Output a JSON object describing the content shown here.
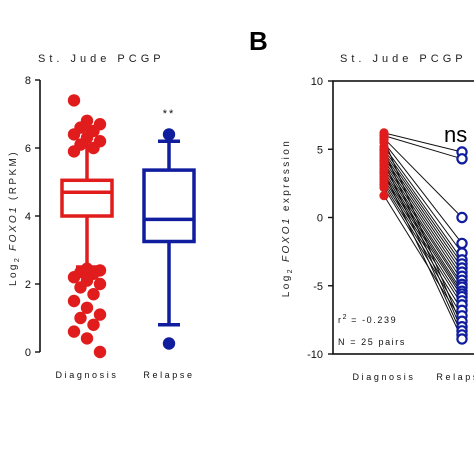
{
  "chart_data": [
    {
      "type": "box",
      "title": "St. Jude PCGP",
      "ylabel": {
        "prefix": "Log",
        "sub": "2",
        "gene": "FOXO1",
        "suffix": "(RPKM)"
      },
      "ylim": [
        0,
        8
      ],
      "yticks": [
        "0",
        "2",
        "4",
        "6",
        "8"
      ],
      "categories": [
        "Diagnosis",
        "Relapse"
      ],
      "significance": "**",
      "colors": {
        "Diagnosis": "#e11c1c",
        "Relapse": "#0f1d9e"
      },
      "boxes": [
        {
          "category": "Diagnosis",
          "whisker_low": 2.5,
          "q1": 4.0,
          "median": 4.7,
          "q3": 5.05,
          "whisker_high": 6.6
        },
        {
          "category": "Relapse",
          "whisker_low": 0.8,
          "q1": 3.25,
          "median": 3.9,
          "q3": 5.35,
          "whisker_high": 6.2
        }
      ],
      "outliers": {
        "Diagnosis": [
          7.4,
          6.8,
          6.7,
          6.6,
          6.5,
          6.4,
          6.3,
          6.2,
          6.1,
          6.0,
          5.9,
          2.45,
          2.4,
          2.35,
          2.3,
          2.2,
          2.1,
          2.0,
          1.9,
          1.7,
          1.5,
          1.3,
          1.1,
          1.0,
          0.8,
          0.6,
          0.4,
          0.0
        ],
        "Relapse": [
          6.4,
          0.25
        ]
      }
    },
    {
      "type": "paired-line",
      "panel_label": "B",
      "title": "St. Jude PCGP",
      "ylabel": {
        "prefix": "Log",
        "sub": "2",
        "gene": "FOXO1",
        "suffix": "expression"
      },
      "ylim": [
        -10,
        10
      ],
      "yticks": [
        "-10",
        "-5",
        "0",
        "5",
        "10"
      ],
      "categories": [
        "Diagnosis",
        "Relapse"
      ],
      "significance": "ns",
      "stats": {
        "r2_prefix": "r",
        "r2_sup": "2",
        "r2_value": "= -0.239",
        "n": "N = 25 pairs"
      },
      "colors": {
        "Diagnosis": "#e11c1c",
        "Relapse": "#0f1d9e",
        "line": "#111111"
      },
      "pairs": [
        [
          6.2,
          4.8
        ],
        [
          6.0,
          4.3
        ],
        [
          5.8,
          0.0
        ],
        [
          5.5,
          -1.9
        ],
        [
          5.2,
          -2.6
        ],
        [
          5.0,
          -3.1
        ],
        [
          4.8,
          -3.4
        ],
        [
          4.6,
          -3.7
        ],
        [
          4.4,
          -4.0
        ],
        [
          4.2,
          -4.3
        ],
        [
          4.0,
          -4.6
        ],
        [
          3.8,
          -4.9
        ],
        [
          3.6,
          -5.1
        ],
        [
          3.4,
          -5.4
        ],
        [
          3.2,
          -5.6
        ],
        [
          3.0,
          -5.8
        ],
        [
          2.8,
          -6.1
        ],
        [
          2.6,
          -6.4
        ],
        [
          2.4,
          -6.8
        ],
        [
          2.2,
          -7.2
        ],
        [
          1.6,
          -7.6
        ],
        [
          5.7,
          -8.0
        ],
        [
          4.9,
          -8.3
        ],
        [
          4.1,
          -8.6
        ],
        [
          3.3,
          -8.9
        ]
      ]
    }
  ]
}
